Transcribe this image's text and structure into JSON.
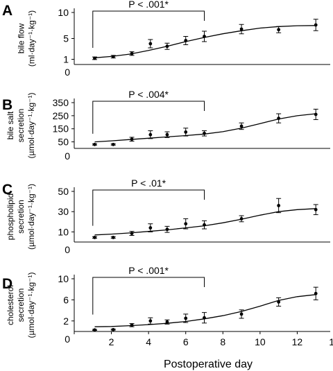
{
  "figure": {
    "x_axis": {
      "label": "Postoperative day",
      "ticks": [
        0,
        2,
        4,
        6,
        8,
        10,
        12,
        14
      ],
      "lim": [
        0,
        14
      ]
    }
  },
  "chart_data": [
    {
      "type": "scatter",
      "panel": "A",
      "ylabel_lines": [
        "bile flow",
        "(ml·day⁻¹·kg⁻¹)"
      ],
      "yticks": [
        1,
        5,
        10
      ],
      "ylim": [
        0,
        10
      ],
      "annotation": {
        "text": "P < .001*",
        "from_day": 1,
        "to_day": 7
      },
      "points": [
        {
          "x": 1.1,
          "y": 1.2,
          "err": 0.25
        },
        {
          "x": 2.1,
          "y": 1.5,
          "err": 0.25
        },
        {
          "x": 3.1,
          "y": 2.1,
          "err": 0.35
        },
        {
          "x": 4.1,
          "y": 4.0,
          "err": 0.8
        },
        {
          "x": 5.0,
          "y": 3.5,
          "err": 0.6
        },
        {
          "x": 6.0,
          "y": 4.6,
          "err": 0.8
        },
        {
          "x": 7.0,
          "y": 5.4,
          "err": 1.0
        },
        {
          "x": 9.0,
          "y": 6.8,
          "err": 0.9
        },
        {
          "x": 11.0,
          "y": 6.7,
          "err": 0.6
        },
        {
          "x": 13.0,
          "y": 7.6,
          "err": 1.1
        }
      ],
      "fit": [
        [
          1.1,
          1.3
        ],
        [
          2,
          1.55
        ],
        [
          3,
          2.0
        ],
        [
          4,
          2.7
        ],
        [
          5,
          3.5
        ],
        [
          6,
          4.4
        ],
        [
          7,
          5.2
        ],
        [
          8,
          5.9
        ],
        [
          9,
          6.5
        ],
        [
          10,
          7.0
        ],
        [
          11,
          7.3
        ],
        [
          12,
          7.45
        ],
        [
          13,
          7.5
        ]
      ]
    },
    {
      "type": "scatter",
      "panel": "B",
      "ylabel_lines": [
        "bile salt",
        "secretion",
        "(µmol·day⁻¹·kg⁻¹)"
      ],
      "yticks": [
        50,
        150,
        250,
        350
      ],
      "ylim": [
        0,
        350
      ],
      "annotation": {
        "text": "P < .004*",
        "from_day": 1,
        "to_day": 7
      },
      "points": [
        {
          "x": 1.1,
          "y": 30,
          "err": 5
        },
        {
          "x": 2.1,
          "y": 30,
          "err": 5
        },
        {
          "x": 3.1,
          "y": 70,
          "err": 15
        },
        {
          "x": 4.1,
          "y": 105,
          "err": 30
        },
        {
          "x": 5.0,
          "y": 105,
          "err": 22
        },
        {
          "x": 6.0,
          "y": 125,
          "err": 30
        },
        {
          "x": 7.0,
          "y": 115,
          "err": 20
        },
        {
          "x": 9.0,
          "y": 170,
          "err": 25
        },
        {
          "x": 11.0,
          "y": 230,
          "err": 35
        },
        {
          "x": 13.0,
          "y": 260,
          "err": 40
        }
      ],
      "fit": [
        [
          1.1,
          50
        ],
        [
          2,
          58
        ],
        [
          3,
          68
        ],
        [
          4,
          78
        ],
        [
          5,
          88
        ],
        [
          6,
          98
        ],
        [
          7,
          110
        ],
        [
          8,
          128
        ],
        [
          9,
          155
        ],
        [
          10,
          190
        ],
        [
          11,
          225
        ],
        [
          12,
          250
        ],
        [
          13,
          265
        ]
      ]
    },
    {
      "type": "scatter",
      "panel": "C",
      "ylabel_lines": [
        "phospholipid",
        "secretion",
        "(µmol·day⁻¹·kg⁻¹)"
      ],
      "yticks": [
        10,
        30,
        50
      ],
      "ylim": [
        0,
        50
      ],
      "annotation": {
        "text": "P < .01*",
        "from_day": 1,
        "to_day": 7
      },
      "points": [
        {
          "x": 1.1,
          "y": 4.5,
          "err": 0.8
        },
        {
          "x": 2.1,
          "y": 4.5,
          "err": 0.8
        },
        {
          "x": 3.1,
          "y": 8.5,
          "err": 2
        },
        {
          "x": 4.1,
          "y": 14,
          "err": 4
        },
        {
          "x": 5.0,
          "y": 12.5,
          "err": 3
        },
        {
          "x": 6.0,
          "y": 18,
          "err": 5
        },
        {
          "x": 7.0,
          "y": 17,
          "err": 4
        },
        {
          "x": 9.0,
          "y": 23,
          "err": 3
        },
        {
          "x": 11.0,
          "y": 36,
          "err": 7
        },
        {
          "x": 13.0,
          "y": 32,
          "err": 5
        }
      ],
      "fit": [
        [
          1.1,
          7
        ],
        [
          2,
          7.8
        ],
        [
          3,
          9
        ],
        [
          4,
          10.5
        ],
        [
          5,
          12
        ],
        [
          6,
          14
        ],
        [
          7,
          16
        ],
        [
          8,
          19
        ],
        [
          9,
          22.5
        ],
        [
          10,
          26.5
        ],
        [
          11,
          30
        ],
        [
          12,
          32
        ],
        [
          13,
          33
        ]
      ]
    },
    {
      "type": "scatter",
      "panel": "D",
      "ylabel_lines": [
        "cholesterol",
        "secretion",
        "(µmol·day⁻¹·kg⁻¹)"
      ],
      "yticks": [
        2,
        6,
        10
      ],
      "ylim": [
        0,
        10
      ],
      "annotation": {
        "text": "P < .001*",
        "from_day": 1,
        "to_day": 7
      },
      "points": [
        {
          "x": 1.1,
          "y": 0.3,
          "err": 0.1
        },
        {
          "x": 2.1,
          "y": 0.35,
          "err": 0.1
        },
        {
          "x": 3.1,
          "y": 1.2,
          "err": 0.3
        },
        {
          "x": 4.1,
          "y": 2.0,
          "err": 0.6
        },
        {
          "x": 5.0,
          "y": 1.8,
          "err": 0.4
        },
        {
          "x": 6.0,
          "y": 2.5,
          "err": 0.8
        },
        {
          "x": 7.0,
          "y": 2.6,
          "err": 1.0
        },
        {
          "x": 9.0,
          "y": 3.3,
          "err": 0.8
        },
        {
          "x": 11.0,
          "y": 5.6,
          "err": 0.8
        },
        {
          "x": 13.0,
          "y": 7.2,
          "err": 1.2
        }
      ],
      "fit": [
        [
          1.1,
          0.9
        ],
        [
          2,
          0.95
        ],
        [
          3,
          1.1
        ],
        [
          4,
          1.3
        ],
        [
          5,
          1.55
        ],
        [
          6,
          1.9
        ],
        [
          7,
          2.4
        ],
        [
          8,
          3.0
        ],
        [
          9,
          3.8
        ],
        [
          10,
          4.8
        ],
        [
          11,
          5.9
        ],
        [
          12,
          6.6
        ],
        [
          13,
          7.0
        ]
      ]
    }
  ]
}
